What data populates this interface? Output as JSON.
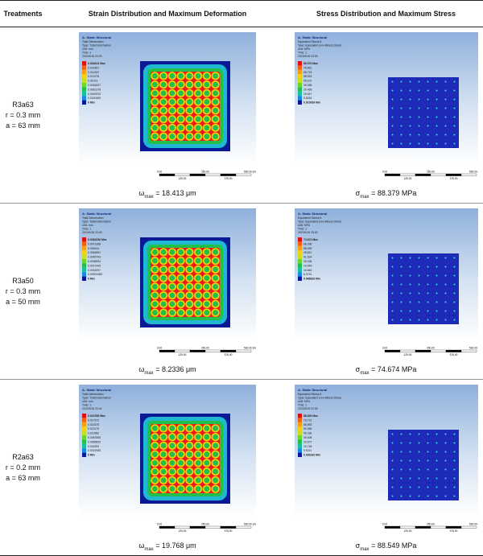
{
  "header": {
    "treatments": "Treatments",
    "strain": "Strain Distribution and Maximum Deformation",
    "stress": "Stress Distribution and Maximum Stress"
  },
  "colors": {
    "deform_bg": "#0a1a96",
    "deform_hot": "#e81c1c",
    "deform_mid": "#f4d20a",
    "deform_cool": "#22c04a",
    "stress_bg": "#1d2bb8",
    "stress_dot": "#3ae0e0"
  },
  "rows": [
    {
      "name": "R3a63",
      "r": "r = 0.3 mm",
      "a": "a = 63 mm",
      "deform": {
        "symbol": "ω",
        "sub": "max",
        "value": "= 18.413 μm",
        "title": "A: Static Structural",
        "meta": [
          "Total Deformation",
          "Type: Total Deformation",
          "Unit: mm",
          "Time: 1",
          "2022/6/16 23:09"
        ],
        "legend": [
          "0.018413 Max",
          "0.016367",
          "0.014322",
          "0.012276",
          "0.01023",
          "0.0081837",
          "0.0061378",
          "0.0040919",
          "0.0020459",
          "0 Min"
        ],
        "scale": [
          "0.00",
          "250.00",
          "500.00 (mm)",
          "125.00",
          "375.00"
        ]
      },
      "stress": {
        "symbol": "σ",
        "sub": "max",
        "value": "= 88.379 MPa",
        "title": "A: Static Structural",
        "meta": [
          "Equivalent Stress 6",
          "Type: Equivalent (von-Mises) Stress",
          "Unit: MPa",
          "Time: 1",
          "2022/6/16 23:09"
        ],
        "legend": [
          "88.379 Max",
          "78.561",
          "68.743",
          "58.923",
          "49.107",
          "39.285",
          "29.466",
          "19.647",
          "9.8282",
          "0.010939 Min"
        ],
        "scale": [
          "0.00",
          "250.00",
          "500.00 (mm)",
          "125.00",
          "375.00"
        ]
      }
    },
    {
      "name": "R3a50",
      "r": "r = 0.3 mm",
      "a": "a = 50 mm",
      "deform": {
        "symbol": "ω",
        "sub": "max",
        "value": "= 8.2336 μm",
        "title": "A: Static Structural",
        "meta": [
          "Total Deformation",
          "Type: Total Deformation",
          "Unit: mm",
          "Time: 1",
          "2022/6/16 23:49"
        ],
        "legend": [
          "0.0082336 Max",
          "0.0073188",
          "0.006404",
          "0.0054891",
          "0.0045743",
          "0.0036594",
          "0.0027445",
          "0.0018297",
          "0.00091485",
          "0 Min"
        ],
        "scale": [
          "0.00",
          "250.00",
          "500.00 (mm)",
          "125.00",
          "375.00"
        ]
      },
      "stress": {
        "symbol": "σ",
        "sub": "max",
        "value": "= 74.674 MPa",
        "title": "A: Static Structural",
        "meta": [
          "Equivalent Stress 6",
          "Type: Equivalent (von-Mises) Stress",
          "Unit: MPa",
          "Time: 1",
          "2022/6/16 23:49"
        ],
        "legend": [
          "74.674 Max",
          "66.396",
          "58.099",
          "49.811",
          "41.524",
          "33.236",
          "24.949",
          "16.662",
          "8.3741",
          "0.086629 Min"
        ],
        "scale": [
          "0.00",
          "250.00",
          "500.00 (mm)",
          "125.00",
          "375.00"
        ]
      }
    },
    {
      "name": "R2a63",
      "r": "r = 0.2 mm",
      "a": "a = 63 mm",
      "deform": {
        "symbol": "ω",
        "sub": "max",
        "value": "= 19.768 μm",
        "title": "A: Static Structural",
        "meta": [
          "Total Deformation",
          "Type: Total Deformation",
          "Unit: mm",
          "Time: 1",
          "2022/6/16 22:44"
        ],
        "legend": [
          "0.019768 Max",
          "0.017572",
          "0.015375",
          "0.013179",
          "0.010982",
          "0.0087858",
          "0.0065895",
          "0.004393",
          "0.0021965",
          "0 Min"
        ],
        "scale": [
          "0.00",
          "250.00",
          "500.00 (mm)",
          "125.00",
          "375.00"
        ]
      },
      "stress": {
        "symbol": "σ",
        "sub": "max",
        "value": "= 88.549 MPa",
        "title": "A: Static Structural",
        "meta": [
          "Equivalent Stress 6",
          "Type: Equivalent (von-Mises) Stress",
          "Unit: MPa",
          "Time: 1",
          "2022/6/16 22:45"
        ],
        "legend": [
          "88.549 Max",
          "78.721",
          "68.893",
          "59.065",
          "49.236",
          "39.408",
          "29.577",
          "19.748",
          "9.9211",
          "0.093183 Min"
        ],
        "scale": [
          "0.00",
          "250.00",
          "500.00 (mm)",
          "125.00",
          "375.00"
        ]
      }
    }
  ]
}
